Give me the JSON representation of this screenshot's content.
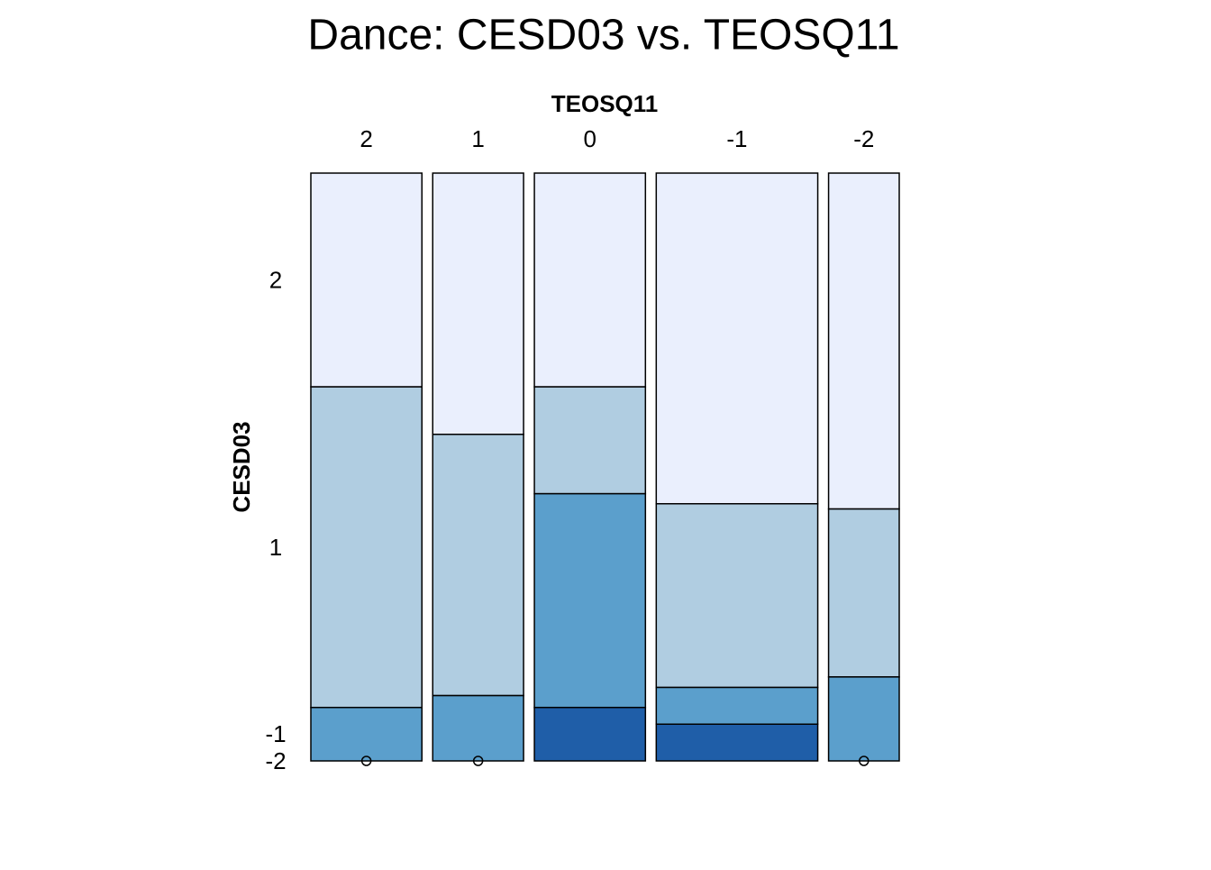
{
  "chart_data": {
    "type": "mosaic",
    "title": "Dance: CESD03 vs. TEOSQ11",
    "x_label": "TEOSQ11",
    "y_label": "CESD03",
    "categories": [
      "2",
      "1",
      "0",
      "-1",
      "-2"
    ],
    "series": [
      {
        "name": "2",
        "color": "#eaeffd",
        "values": [
          4,
          4,
          4,
          9,
          4
        ]
      },
      {
        "name": "1",
        "color": "#b0cde1",
        "values": [
          6,
          4,
          2,
          5,
          2
        ]
      },
      {
        "name": "-1",
        "color": "#5b9fcc",
        "values": [
          1,
          1,
          4,
          1,
          1
        ]
      },
      {
        "name": "-2",
        "color": "#1f5ea8",
        "values": [
          0,
          0,
          1,
          1,
          0
        ]
      }
    ]
  }
}
